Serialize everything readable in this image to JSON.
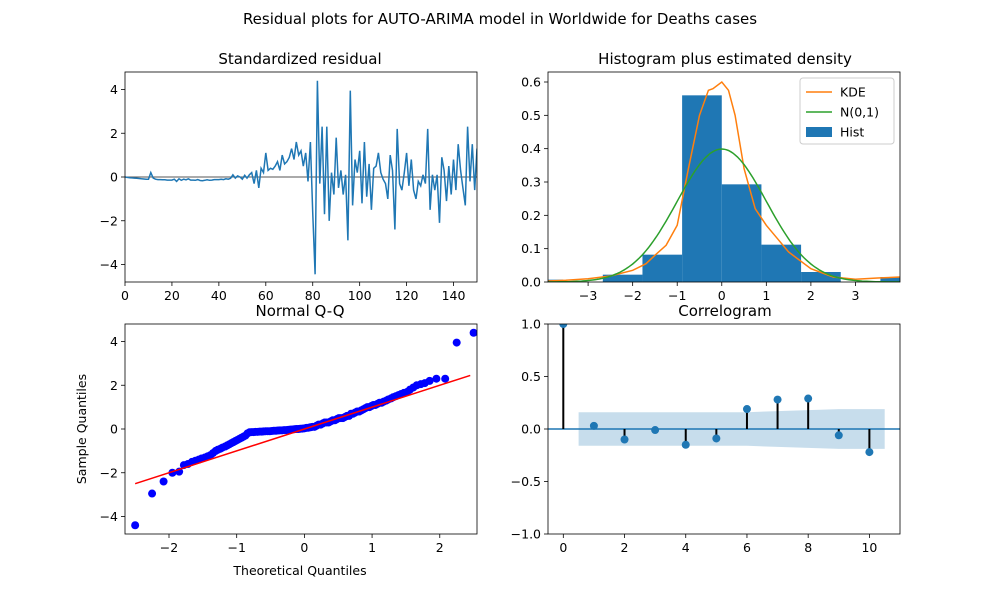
{
  "figure_title": "Residual plots for AUTO-ARIMA model in Worldwide for Deaths cases",
  "chart_data": [
    {
      "id": "std_resid",
      "type": "line",
      "title": "Standardized residual",
      "xlabel": "",
      "ylabel": "",
      "xlim": [
        0,
        150
      ],
      "ylim": [
        -4.8,
        4.8
      ],
      "xticks": [
        0,
        20,
        40,
        60,
        80,
        100,
        120,
        140
      ],
      "yticks": [
        -4,
        -2,
        0,
        2,
        4
      ],
      "hline": 0,
      "line_color": "#1f77b4",
      "hline_color": "#555555",
      "grid": false,
      "x": [
        0,
        1,
        2,
        3,
        4,
        5,
        6,
        7,
        8,
        9,
        10,
        11,
        12,
        13,
        14,
        15,
        16,
        17,
        18,
        19,
        20,
        21,
        22,
        23,
        24,
        25,
        26,
        27,
        28,
        29,
        30,
        31,
        32,
        33,
        34,
        35,
        36,
        37,
        38,
        39,
        40,
        41,
        42,
        43,
        44,
        45,
        46,
        47,
        48,
        49,
        50,
        51,
        52,
        53,
        54,
        55,
        56,
        57,
        58,
        59,
        60,
        61,
        62,
        63,
        64,
        65,
        66,
        67,
        68,
        69,
        70,
        71,
        72,
        73,
        74,
        75,
        76,
        77,
        78,
        79,
        80,
        81,
        82,
        83,
        84,
        85,
        86,
        87,
        88,
        89,
        90,
        91,
        92,
        93,
        94,
        95,
        96,
        97,
        98,
        99,
        100,
        101,
        102,
        103,
        104,
        105,
        106,
        107,
        108,
        109,
        110,
        111,
        112,
        113,
        114,
        115,
        116,
        117,
        118,
        119,
        120,
        121,
        122,
        123,
        124,
        125,
        126,
        127,
        128,
        129,
        130,
        131,
        132,
        133,
        134,
        135,
        136,
        137,
        138,
        139,
        140,
        141,
        142,
        143,
        144,
        145,
        146,
        147,
        148,
        149,
        150
      ],
      "y": [
        0.0,
        -0.02,
        -0.03,
        -0.04,
        -0.05,
        -0.06,
        -0.07,
        -0.08,
        -0.09,
        -0.1,
        -0.1,
        0.2,
        -0.05,
        -0.1,
        -0.12,
        -0.12,
        -0.13,
        -0.13,
        -0.14,
        -0.14,
        -0.14,
        -0.1,
        -0.2,
        -0.08,
        -0.15,
        -0.1,
        -0.13,
        -0.08,
        -0.14,
        -0.14,
        -0.15,
        -0.12,
        -0.16,
        -0.17,
        -0.15,
        -0.13,
        -0.15,
        -0.14,
        -0.12,
        -0.12,
        -0.12,
        -0.1,
        -0.12,
        -0.08,
        -0.1,
        -0.06,
        0.1,
        -0.05,
        0.05,
        0.0,
        -0.1,
        0.08,
        -0.05,
        0.1,
        0.2,
        -0.3,
        0.3,
        -0.5,
        0.4,
        0.2,
        1.1,
        0.3,
        0.4,
        0.35,
        0.5,
        0.7,
        0.3,
        1.0,
        0.6,
        0.7,
        0.9,
        1.3,
        0.8,
        1.6,
        1.0,
        1.2,
        0.5,
        1.1,
        -0.2,
        1.6,
        -1.6,
        -4.45,
        4.4,
        -0.3,
        2.3,
        -1.7,
        2.3,
        -2.0,
        0.2,
        -0.8,
        1.8,
        -0.5,
        0.3,
        -0.8,
        0.1,
        -2.9,
        3.95,
        -1.3,
        0.8,
        0.2,
        1.2,
        -1.2,
        1.6,
        -0.9,
        0.6,
        -1.5,
        0.4,
        0.5,
        1.1,
        0.2,
        -0.1,
        -0.3,
        -1.0,
        1.0,
        0.3,
        -2.4,
        2.2,
        -0.3,
        -0.6,
        0.2,
        1.1,
        -0.4,
        0.8,
        -0.6,
        -1.0,
        -0.2,
        -0.4,
        0.1,
        -0.3,
        2.2,
        -1.5,
        0.1,
        -0.6,
        0.1,
        -2.1,
        0.9,
        0.3,
        -1.1,
        0.5,
        -0.8,
        0.8,
        -0.6,
        1.5,
        0.3,
        -0.5,
        -1.3,
        2.3,
        -0.2,
        1.5,
        -0.6,
        1.3
      ]
    },
    {
      "id": "hist_kde",
      "type": "bar",
      "title": "Histogram plus estimated density",
      "xlabel": "",
      "ylabel": "",
      "xlim": [
        -3.9,
        4.0
      ],
      "ylim": [
        0,
        0.63
      ],
      "xticks": [
        -3,
        -2,
        -1,
        0,
        1,
        2,
        3
      ],
      "yticks": [
        0.0,
        0.1,
        0.2,
        0.3,
        0.4,
        0.5,
        0.6
      ],
      "legend_position": "top-right",
      "histogram": {
        "name": "Hist",
        "color": "#1f77b4",
        "bin_edges": [
          -4.45,
          -3.56,
          -2.67,
          -1.78,
          -0.89,
          0.0,
          0.89,
          1.78,
          2.67,
          3.56,
          4.45
        ],
        "density": [
          0.007,
          0.0,
          0.022,
          0.082,
          0.56,
          0.293,
          0.112,
          0.03,
          0.0,
          0.015
        ]
      },
      "series": [
        {
          "name": "KDE",
          "type": "line",
          "color": "#ff7f0e",
          "x": [
            -3.9,
            -3.5,
            -3.0,
            -2.5,
            -2.0,
            -1.7,
            -1.5,
            -1.25,
            -1.0,
            -0.75,
            -0.5,
            -0.3,
            -0.2,
            0.0,
            0.15,
            0.3,
            0.5,
            0.75,
            1.0,
            1.25,
            1.5,
            2.0,
            2.5,
            3.0,
            3.5,
            4.0
          ],
          "y": [
            0.003,
            0.005,
            0.01,
            0.018,
            0.035,
            0.055,
            0.08,
            0.11,
            0.17,
            0.34,
            0.5,
            0.575,
            0.58,
            0.6,
            0.575,
            0.5,
            0.34,
            0.22,
            0.17,
            0.13,
            0.09,
            0.04,
            0.015,
            0.008,
            0.012,
            0.015
          ]
        },
        {
          "name": "N(0,1)",
          "type": "line",
          "color": "#2ca02c",
          "mu": 0,
          "sigma": 1
        }
      ]
    },
    {
      "id": "qq",
      "type": "scatter",
      "title": "Normal Q-Q",
      "xlabel": "Theoretical Quantiles",
      "ylabel": "Sample Quantiles",
      "xlim": [
        -2.65,
        2.55
      ],
      "ylim": [
        -4.8,
        4.8
      ],
      "xticks": [
        -2,
        -1,
        0,
        1,
        2
      ],
      "yticks": [
        -4,
        -2,
        0,
        2,
        4
      ],
      "marker_color": "#0000ff",
      "ref_line": {
        "color": "#ff0000",
        "x": [
          -2.5,
          2.45
        ],
        "y": [
          -2.5,
          2.45
        ]
      },
      "points": {
        "x": [
          -2.5,
          -2.25,
          -2.08,
          -1.95,
          -1.85,
          -1.78,
          -1.72,
          -1.66,
          -1.61,
          -1.56,
          -1.52,
          -1.47,
          -1.43,
          -1.39,
          -1.35,
          -1.31,
          -1.28,
          -1.24,
          -1.21,
          -1.17,
          -1.14,
          -1.11,
          -1.08,
          -1.05,
          -1.02,
          -0.99,
          -0.96,
          -0.93,
          -0.9,
          -0.87,
          -0.84,
          -0.81,
          -0.78,
          -0.75,
          -0.72,
          -0.69,
          -0.66,
          -0.63,
          -0.6,
          -0.57,
          -0.54,
          -0.51,
          -0.48,
          -0.45,
          -0.42,
          -0.39,
          -0.36,
          -0.33,
          -0.3,
          -0.27,
          -0.24,
          -0.21,
          -0.18,
          -0.15,
          -0.12,
          -0.09,
          -0.06,
          -0.03,
          0.0,
          0.03,
          0.06,
          0.09,
          0.12,
          0.15,
          0.18,
          0.21,
          0.24,
          0.27,
          0.3,
          0.33,
          0.36,
          0.39,
          0.42,
          0.45,
          0.48,
          0.51,
          0.54,
          0.57,
          0.6,
          0.63,
          0.66,
          0.69,
          0.72,
          0.75,
          0.78,
          0.81,
          0.84,
          0.87,
          0.9,
          0.93,
          0.96,
          0.99,
          1.02,
          1.05,
          1.08,
          1.11,
          1.14,
          1.17,
          1.21,
          1.24,
          1.28,
          1.31,
          1.35,
          1.39,
          1.43,
          1.47,
          1.52,
          1.56,
          1.61,
          1.66,
          1.72,
          1.78,
          1.85,
          1.95,
          2.08,
          2.25,
          2.5
        ],
        "y": [
          -4.4,
          -2.95,
          -2.4,
          -2.0,
          -1.95,
          -1.65,
          -1.6,
          -1.5,
          -1.45,
          -1.4,
          -1.35,
          -1.3,
          -1.25,
          -1.2,
          -1.1,
          -1.0,
          -0.95,
          -0.9,
          -0.85,
          -0.8,
          -0.75,
          -0.7,
          -0.65,
          -0.6,
          -0.55,
          -0.5,
          -0.45,
          -0.4,
          -0.35,
          -0.3,
          -0.2,
          -0.15,
          -0.14,
          -0.14,
          -0.13,
          -0.13,
          -0.12,
          -0.12,
          -0.11,
          -0.1,
          -0.1,
          -0.1,
          -0.09,
          -0.08,
          -0.08,
          -0.07,
          -0.06,
          -0.06,
          -0.05,
          -0.05,
          -0.04,
          -0.03,
          -0.02,
          -0.01,
          0.0,
          0.0,
          0.01,
          0.02,
          0.03,
          0.05,
          0.06,
          0.08,
          0.1,
          0.1,
          0.15,
          0.2,
          0.2,
          0.25,
          0.3,
          0.3,
          0.3,
          0.35,
          0.4,
          0.4,
          0.45,
          0.5,
          0.5,
          0.5,
          0.55,
          0.6,
          0.6,
          0.7,
          0.7,
          0.75,
          0.8,
          0.8,
          0.85,
          0.9,
          0.95,
          1.0,
          1.0,
          1.05,
          1.1,
          1.1,
          1.15,
          1.2,
          1.2,
          1.25,
          1.3,
          1.35,
          1.4,
          1.45,
          1.5,
          1.55,
          1.6,
          1.65,
          1.7,
          1.8,
          1.9,
          2.0,
          2.05,
          2.1,
          2.2,
          2.3,
          2.3,
          3.95,
          4.4
        ]
      }
    },
    {
      "id": "correlogram",
      "type": "scatter",
      "title": "Correlogram",
      "xlabel": "",
      "ylabel": "",
      "xlim": [
        -0.5,
        11
      ],
      "ylim": [
        -1.0,
        1.0
      ],
      "xticks": [
        0,
        2,
        4,
        6,
        8,
        10
      ],
      "yticks": [
        -1.0,
        -0.5,
        0.0,
        0.5,
        1.0
      ],
      "marker_color": "#1f77b4",
      "band_color": "#1f77b4",
      "lags": [
        0,
        1,
        2,
        3,
        4,
        5,
        6,
        7,
        8,
        9,
        10
      ],
      "acf": [
        1.0,
        0.03,
        -0.1,
        -0.01,
        -0.15,
        -0.09,
        0.19,
        0.28,
        0.29,
        -0.06,
        -0.22
      ],
      "confidence_band": {
        "x": [
          0.5,
          1,
          2,
          3,
          4,
          5,
          6,
          7,
          8,
          9,
          10,
          10.5
        ],
        "upper": [
          0.16,
          0.16,
          0.16,
          0.16,
          0.16,
          0.16,
          0.16,
          0.17,
          0.18,
          0.19,
          0.19,
          0.19
        ],
        "lower": [
          -0.16,
          -0.16,
          -0.16,
          -0.16,
          -0.16,
          -0.16,
          -0.16,
          -0.17,
          -0.18,
          -0.19,
          -0.19,
          -0.19
        ]
      }
    }
  ]
}
